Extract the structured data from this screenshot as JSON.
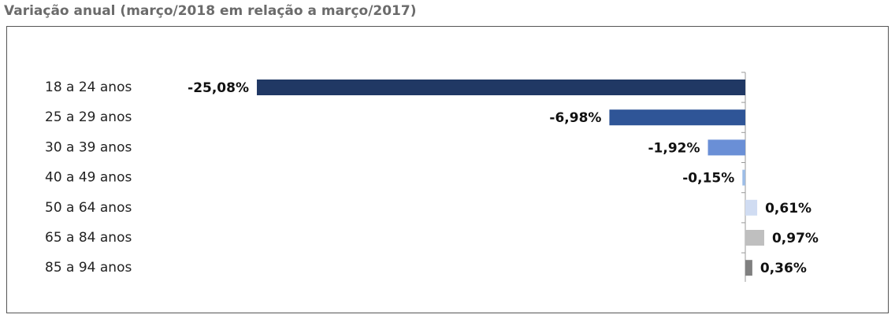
{
  "chart_data": {
    "type": "bar",
    "orientation": "horizontal",
    "title": "Variação anual (março/2018 em relação a março/2017)",
    "categories": [
      "18 a 24 anos",
      "25 a 29 anos",
      "30 a 39 anos",
      "40 a 49 anos",
      "50 a 64 anos",
      "65 a 84 anos",
      "85 a 94 anos"
    ],
    "values": [
      -25.08,
      -6.98,
      -1.92,
      -0.15,
      0.61,
      0.97,
      0.36
    ],
    "value_labels": [
      "-25,08%",
      "-6,98%",
      "-1,92%",
      "-0,15%",
      "0,61%",
      "0,97%",
      "0,36%"
    ],
    "colors": [
      "#203864",
      "#2f5597",
      "#6a8fd6",
      "#9dbde6",
      "#d0dcf2",
      "#bfbfbf",
      "#808080"
    ]
  }
}
